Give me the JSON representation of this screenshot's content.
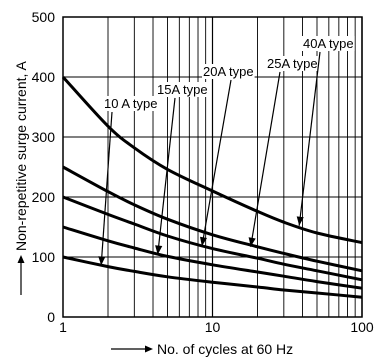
{
  "chart_data": {
    "type": "line",
    "title": "",
    "xlabel": "No. of cycles at 60 Hz",
    "ylabel": "Non-repetitive surge current, A",
    "xscale": "log",
    "xlim": [
      1,
      100
    ],
    "ylim": [
      0,
      500
    ],
    "grid": true,
    "x_ticks": [
      1,
      10,
      100
    ],
    "x_tick_labels": [
      "1",
      "10",
      "100"
    ],
    "y_ticks": [
      0,
      100,
      200,
      300,
      400,
      500
    ],
    "y_tick_labels": [
      "0",
      "100",
      "200",
      "300",
      "400",
      "500"
    ],
    "x": [
      1,
      2,
      3,
      5,
      10,
      20,
      30,
      50,
      100
    ],
    "series": [
      {
        "name": "10 A type",
        "values": [
          100,
          84,
          76,
          67,
          58,
          50,
          45,
          40,
          33
        ]
      },
      {
        "name": "15A type",
        "values": [
          150,
          127,
          115,
          101,
          87,
          75,
          68,
          59,
          48
        ]
      },
      {
        "name": "20A type",
        "values": [
          200,
          171,
          155,
          135,
          114,
          98,
          88,
          77,
          62
        ]
      },
      {
        "name": "25A type",
        "values": [
          250,
          209,
          187,
          163,
          137,
          117,
          106,
          93,
          77
        ]
      },
      {
        "name": "40A type",
        "values": [
          400,
          318,
          282,
          246,
          210,
          176,
          158,
          140,
          124
        ]
      }
    ],
    "annotations": [
      {
        "text": "10 A type",
        "series": "10 A type",
        "point_x": 1.8,
        "point_y": 86
      },
      {
        "text": "15A type",
        "series": "15A type",
        "point_x": 4.3,
        "point_y": 104
      },
      {
        "text": "20A type",
        "series": "20A type",
        "point_x": 8.5,
        "point_y": 118
      },
      {
        "text": "25A type",
        "series": "25A type",
        "point_x": 18,
        "point_y": 117
      },
      {
        "text": "40A type",
        "series": "40A type",
        "point_x": 38,
        "point_y": 152
      }
    ]
  }
}
